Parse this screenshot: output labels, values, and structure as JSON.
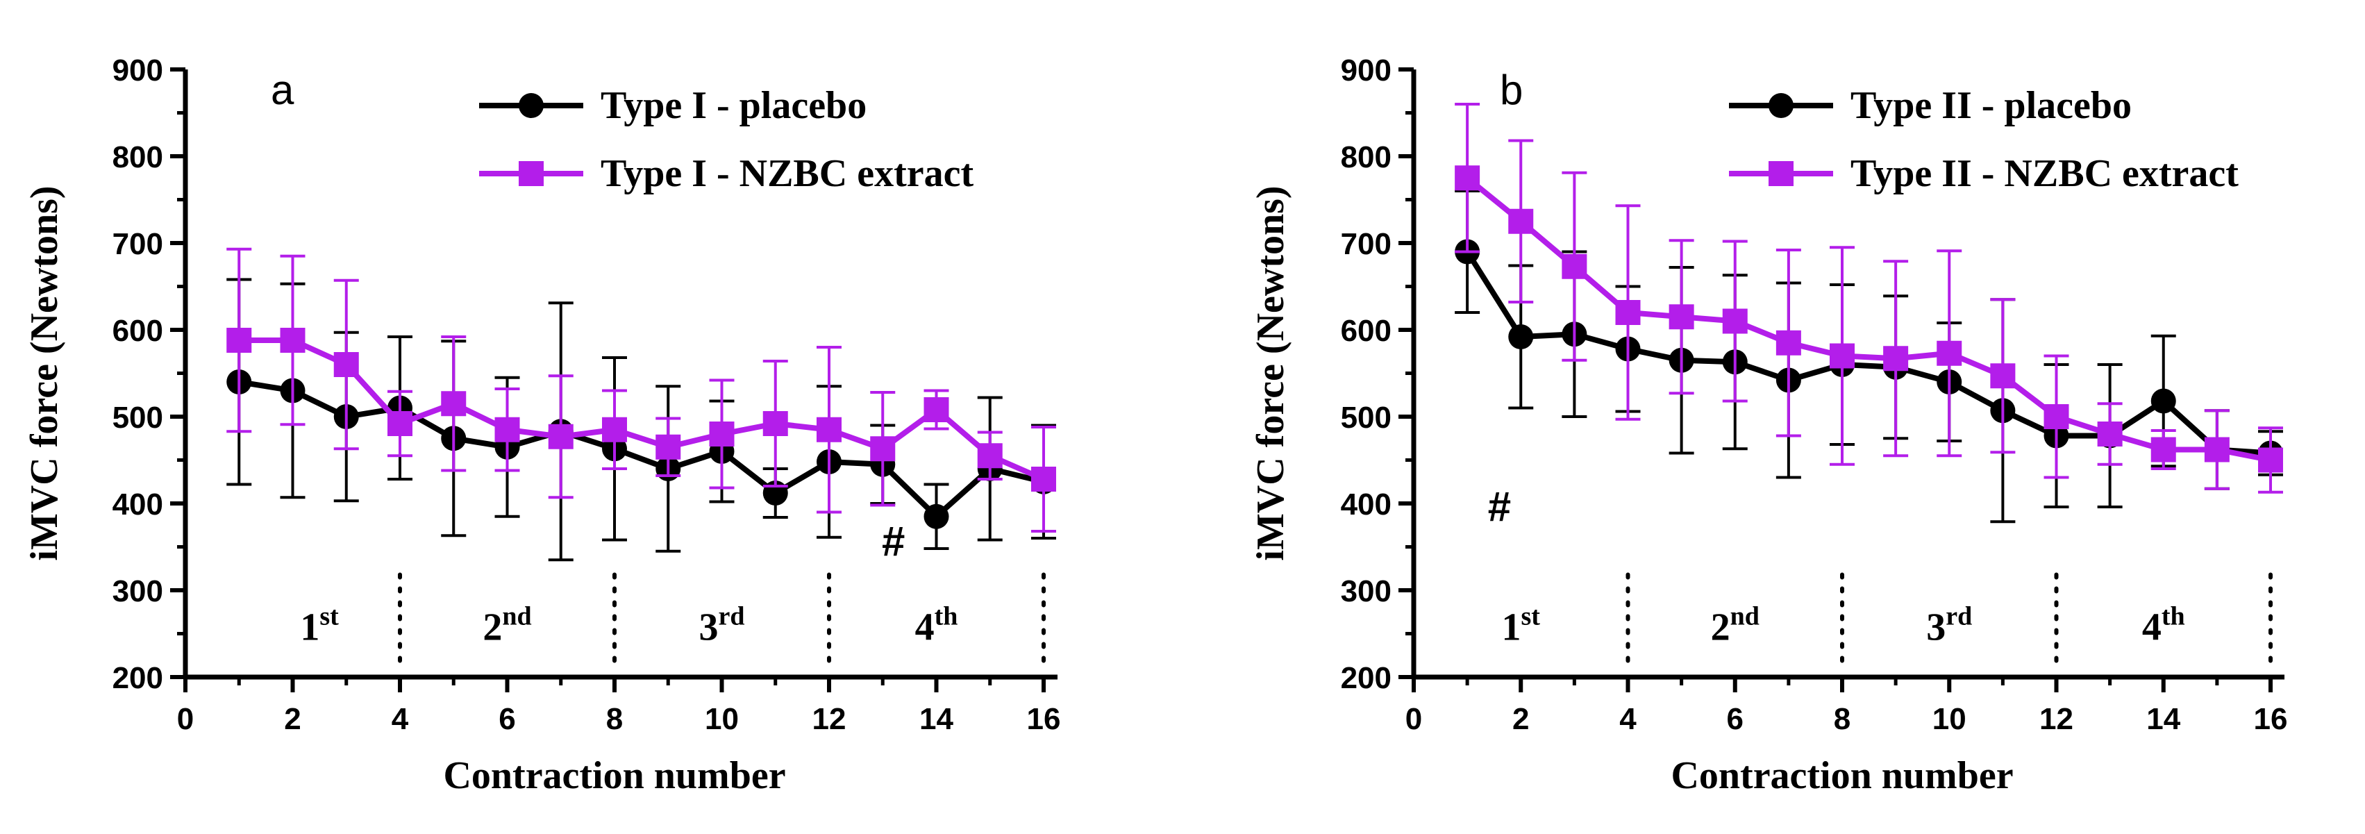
{
  "colors": {
    "placebo": "#000000",
    "extract": "#b31eea",
    "axis": "#000000"
  },
  "chart_data": [
    {
      "type": "line",
      "panel_label": "a",
      "xlabel": "Contraction number",
      "ylabel": "iMVC force (Newtons)",
      "xlim": [
        0,
        16
      ],
      "ylim": [
        200,
        900
      ],
      "xticks": [
        "0",
        "2",
        "4",
        "6",
        "8",
        "10",
        "12",
        "14",
        "16"
      ],
      "yticks": [
        "200",
        "300",
        "400",
        "500",
        "600",
        "700",
        "800",
        "900"
      ],
      "legend_position": "top-right",
      "grid": false,
      "bouts": [
        {
          "num": "1",
          "sup": "st",
          "x": 2.5
        },
        {
          "num": "2",
          "sup": "nd",
          "x": 6
        },
        {
          "num": "3",
          "sup": "rd",
          "x": 10
        },
        {
          "num": "4",
          "sup": "th",
          "x": 14
        }
      ],
      "dividers": [
        4,
        8,
        12,
        16
      ],
      "markers": [
        {
          "text": "#",
          "x": 13.2,
          "y": 340
        }
      ],
      "series": [
        {
          "name": "Type I - placebo",
          "color": "#000000",
          "marker": "circle",
          "x": [
            1,
            2,
            3,
            4,
            5,
            6,
            7,
            8,
            9,
            10,
            11,
            12,
            13,
            14,
            15,
            16
          ],
          "y": [
            540,
            530,
            500,
            510,
            475,
            465,
            483,
            463,
            440,
            460,
            412,
            448,
            445,
            385,
            440,
            425
          ],
          "err": [
            118,
            123,
            97,
            82,
            112,
            80,
            148,
            105,
            95,
            58,
            28,
            87,
            45,
            37,
            82,
            65
          ]
        },
        {
          "name": "Type I - NZBC extract",
          "color": "#b31eea",
          "marker": "square",
          "x": [
            1,
            2,
            3,
            4,
            5,
            6,
            7,
            8,
            9,
            10,
            11,
            12,
            13,
            14,
            15,
            16
          ],
          "y": [
            588,
            588,
            560,
            492,
            515,
            485,
            477,
            485,
            465,
            480,
            492,
            485,
            463,
            508,
            455,
            428
          ],
          "err": [
            105,
            97,
            97,
            37,
            77,
            47,
            70,
            45,
            33,
            62,
            72,
            95,
            65,
            22,
            27,
            60
          ]
        }
      ]
    },
    {
      "type": "line",
      "panel_label": "b",
      "xlabel": "Contraction number",
      "ylabel": "iMVC force (Newtons)",
      "xlim": [
        0,
        16
      ],
      "ylim": [
        200,
        900
      ],
      "xticks": [
        "0",
        "2",
        "4",
        "6",
        "8",
        "10",
        "12",
        "14",
        "16"
      ],
      "yticks": [
        "200",
        "300",
        "400",
        "500",
        "600",
        "700",
        "800",
        "900"
      ],
      "legend_position": "top-right",
      "grid": false,
      "bouts": [
        {
          "num": "1",
          "sup": "st",
          "x": 2
        },
        {
          "num": "2",
          "sup": "nd",
          "x": 6
        },
        {
          "num": "3",
          "sup": "rd",
          "x": 10
        },
        {
          "num": "4",
          "sup": "th",
          "x": 14
        }
      ],
      "dividers": [
        4,
        8,
        12,
        16
      ],
      "markers": [
        {
          "text": "#",
          "x": 1.6,
          "y": 380
        }
      ],
      "series": [
        {
          "name": "Type II - placebo",
          "color": "#000000",
          "marker": "circle",
          "x": [
            1,
            2,
            3,
            4,
            5,
            6,
            7,
            8,
            9,
            10,
            11,
            12,
            13,
            14,
            15,
            16
          ],
          "y": [
            690,
            592,
            595,
            578,
            565,
            563,
            542,
            560,
            557,
            540,
            507,
            478,
            478,
            518,
            462,
            458
          ],
          "err": [
            70,
            82,
            95,
            72,
            107,
            100,
            112,
            92,
            82,
            68,
            128,
            82,
            82,
            75,
            45,
            25
          ]
        },
        {
          "name": "Type II - NZBC extract",
          "color": "#b31eea",
          "marker": "square",
          "x": [
            1,
            2,
            3,
            4,
            5,
            6,
            7,
            8,
            9,
            10,
            11,
            12,
            13,
            14,
            15,
            16
          ],
          "y": [
            775,
            725,
            673,
            620,
            615,
            610,
            585,
            570,
            567,
            573,
            547,
            500,
            480,
            462,
            462,
            450
          ],
          "err": [
            85,
            93,
            108,
            123,
            88,
            92,
            107,
            125,
            112,
            118,
            88,
            70,
            35,
            22,
            45,
            37
          ]
        }
      ]
    }
  ]
}
